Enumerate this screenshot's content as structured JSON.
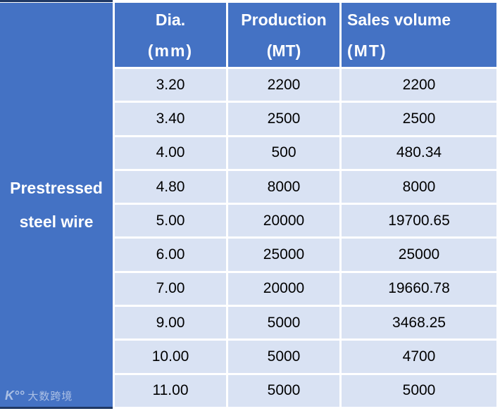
{
  "colors": {
    "header_blue": "#4472C4",
    "row_light": "#D9E2F3",
    "border_dark": "#1F3864",
    "header_text": "#FFFFFF",
    "cell_text": "#000000"
  },
  "table": {
    "group_label": {
      "line1": "Prestressed",
      "line2": "steel wire"
    },
    "headers": [
      {
        "line1": "Dia.",
        "line2": "(mm)"
      },
      {
        "line1": "Production",
        "line2": "(MT)"
      },
      {
        "line1": "Sales volume",
        "line2": "(MT)"
      }
    ],
    "rows": [
      {
        "dia": "3.20",
        "production": "2200",
        "sales": "2200"
      },
      {
        "dia": "3.40",
        "production": "2500",
        "sales": "2500"
      },
      {
        "dia": "4.00",
        "production": "500",
        "sales": "480.34"
      },
      {
        "dia": "4.80",
        "production": "8000",
        "sales": "8000"
      },
      {
        "dia": "5.00",
        "production": "20000",
        "sales": "19700.65"
      },
      {
        "dia": "6.00",
        "production": "25000",
        "sales": "25000"
      },
      {
        "dia": "7.00",
        "production": "20000",
        "sales": "19660.78"
      },
      {
        "dia": "9.00",
        "production": "5000",
        "sales": "3468.25"
      },
      {
        "dia": "10.00",
        "production": "5000",
        "sales": "4700"
      },
      {
        "dia": "11.00",
        "production": "5000",
        "sales": "5000"
      }
    ]
  },
  "watermark": {
    "logo": "K°°",
    "text": "大数跨境"
  },
  "chart_data": {
    "type": "table",
    "title": "",
    "row_group_label": "Prestressed steel wire",
    "columns": [
      "Dia. (mm)",
      "Production (MT)",
      "Sales volume (MT)"
    ],
    "rows": [
      [
        3.2,
        2200,
        2200
      ],
      [
        3.4,
        2500,
        2500
      ],
      [
        4.0,
        500,
        480.34
      ],
      [
        4.8,
        8000,
        8000
      ],
      [
        5.0,
        20000,
        19700.65
      ],
      [
        6.0,
        25000,
        25000
      ],
      [
        7.0,
        20000,
        19660.78
      ],
      [
        9.0,
        5000,
        3468.25
      ],
      [
        10.0,
        5000,
        4700
      ],
      [
        11.0,
        5000,
        5000
      ]
    ]
  }
}
